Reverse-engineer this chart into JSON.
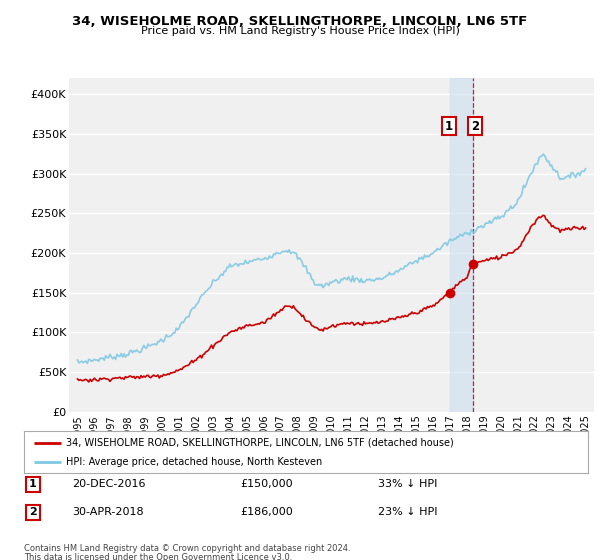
{
  "title": "34, WISEHOLME ROAD, SKELLINGTHORPE, LINCOLN, LN6 5TF",
  "subtitle": "Price paid vs. HM Land Registry's House Price Index (HPI)",
  "ylabel_ticks": [
    "£0",
    "£50K",
    "£100K",
    "£150K",
    "£200K",
    "£250K",
    "£300K",
    "£350K",
    "£400K"
  ],
  "ytick_values": [
    0,
    50000,
    100000,
    150000,
    200000,
    250000,
    300000,
    350000,
    400000
  ],
  "ylim": [
    0,
    420000
  ],
  "hpi_color": "#7ec8e3",
  "price_color": "#cc0000",
  "vline_color": "#cc0000",
  "transaction1_date": "20-DEC-2016",
  "transaction1_price": 150000,
  "transaction1_label": "33% ↓ HPI",
  "transaction1_x": 2016.97,
  "transaction2_date": "30-APR-2018",
  "transaction2_price": 186000,
  "transaction2_label": "23% ↓ HPI",
  "transaction2_x": 2018.33,
  "legend_line1": "34, WISEHOLME ROAD, SKELLINGTHORPE, LINCOLN, LN6 5TF (detached house)",
  "legend_line2": "HPI: Average price, detached house, North Kesteven",
  "footnote1": "Contains HM Land Registry data © Crown copyright and database right 2024.",
  "footnote2": "This data is licensed under the Open Government Licence v3.0.",
  "bg_color": "#ffffff",
  "plot_bg_color": "#f0f0f0",
  "grid_color": "#ffffff",
  "xlim_left": 1994.5,
  "xlim_right": 2025.5,
  "span_color": "#c6dcf0",
  "span_alpha": 0.5
}
